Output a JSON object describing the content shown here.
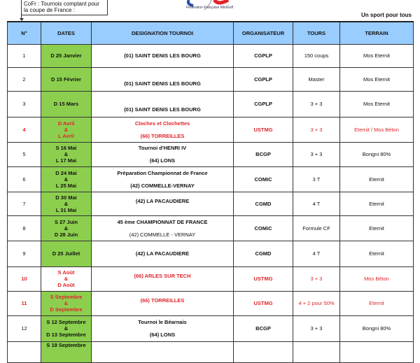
{
  "note": "CoFr : Tournois comptant pour la coupe de France :",
  "logo_text": "Fédération Française MiniGolf",
  "slogan": "Un sport pour tous",
  "headers": [
    "N°",
    "DATES",
    "DESIGNATION TOURNOI",
    "ORGANISATEUR",
    "TOURS",
    "TERRAIN"
  ],
  "colors": {
    "header": "#99ccff",
    "date_green": "#8ccf4f",
    "highlight_red": "#e0242a"
  },
  "rows": [
    {
      "n": "1",
      "dates": [
        "D 25 Janvier"
      ],
      "designation": [
        "(01) SAINT DENIS LES BOURG"
      ],
      "org": "CGPLP",
      "tours": "150 coups",
      "terrain": "Mos Eternit",
      "red": false,
      "green": true
    },
    {
      "n": "2",
      "dates": [
        "D 15 Février"
      ],
      "designation": [
        "(01) SAINT DENIS LES BOURG"
      ],
      "org": "CGPLP",
      "tours": "Master",
      "terrain": "Mos Eternit",
      "red": false,
      "green": true
    },
    {
      "n": "3",
      "dates": [
        "D 15 Mars"
      ],
      "designation": [
        "(01) SAINT DENIS LES BOURG"
      ],
      "org": "CGPLP",
      "tours": "3 + 3",
      "terrain": "Mos Eternit",
      "red": false,
      "green": true
    },
    {
      "n": "4",
      "dates": [
        "D  Avril",
        "&",
        "L  Avril"
      ],
      "designation": [
        "Cloches et Clochettes",
        "(66) TORREILLES"
      ],
      "org": "USTMG",
      "tours": "3 + 3",
      "terrain": "Eternit / Mos Béton",
      "red": true,
      "green": true
    },
    {
      "n": "5",
      "dates": [
        "S 16 Mai",
        "&",
        "L 17 Mai"
      ],
      "designation": [
        "Tournoi d'HENRI IV",
        "(64) LONS"
      ],
      "org": "BCGP",
      "tours": "3 + 3",
      "terrain": "Bongni 80%",
      "red": false,
      "green": true
    },
    {
      "n": "6",
      "dates": [
        "D 24 Mai",
        "&",
        "L 25 Mai"
      ],
      "designation": [
        "Préparation Championnat de France",
        "(42) COMMELLE-VERNAY"
      ],
      "org": "COMIC",
      "tours": "3 T",
      "terrain": "Eternit",
      "red": false,
      "green": true
    },
    {
      "n": "7",
      "dates": [
        "D 30 Mai",
        "&",
        "L 31 Mai"
      ],
      "designation": [
        "(42) LA PACAUDIERE"
      ],
      "org": "CGMD",
      "tours": "4 T",
      "terrain": "Eternit",
      "red": false,
      "green": true
    },
    {
      "n": "8",
      "dates": [
        "S 27 Juin",
        "&",
        "D 28 Juin"
      ],
      "designation": [
        "45 ème CHAMPIONNAT DE FRANCE",
        "(42) COMMELLE - VERNAY"
      ],
      "org": "COMiC",
      "tours": "Formule CF",
      "terrain": "Eternit",
      "red": false,
      "green": true
    },
    {
      "n": "9",
      "dates": [
        "D 25 Juillet"
      ],
      "designation": [
        "(42) LA PACAUDIERE"
      ],
      "org": "CGMD",
      "tours": "4 T",
      "terrain": "Eternit",
      "red": false,
      "green": true
    },
    {
      "n": "10",
      "dates": [
        "S  Août",
        "&",
        "D  Août"
      ],
      "designation": [
        "(66) ARLES SUR TECH"
      ],
      "org": "USTMG",
      "tours": "3 + 3",
      "terrain": "Mos Béton",
      "red": true,
      "green": false
    },
    {
      "n": "11",
      "dates": [
        "S  Septembre",
        "&",
        "D  Septembre"
      ],
      "designation": [
        "(66) TORREILLES"
      ],
      "org": "USTMG",
      "tours": "4 + 2 pour 50%",
      "terrain": "Eternit",
      "red": true,
      "green": true
    },
    {
      "n": "12",
      "dates": [
        "S 12 Septembre",
        "&",
        "D 13 Septembre"
      ],
      "designation": [
        "Tournoi le Béarnais",
        "(64) LONS"
      ],
      "org": "BCGP",
      "tours": "3 + 3",
      "terrain": "Bongni 80%",
      "red": false,
      "green": true
    },
    {
      "n": "",
      "dates": [
        "S  19 Septembre"
      ],
      "designation": [],
      "org": "",
      "tours": "",
      "terrain": "",
      "red": false,
      "green": true
    }
  ]
}
